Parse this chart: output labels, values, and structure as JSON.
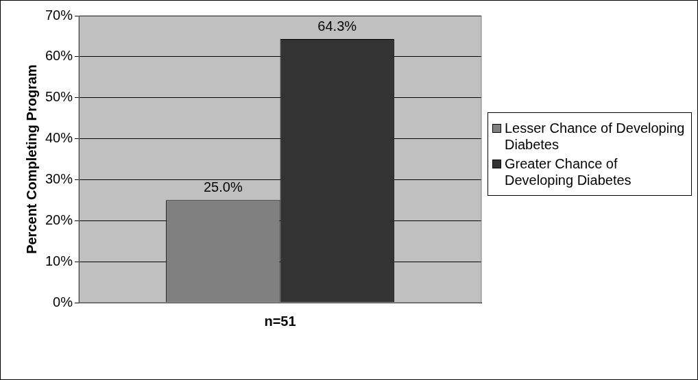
{
  "chart_data": {
    "type": "bar",
    "ylabel": "Percent Completing Program",
    "categories": [
      "n=51"
    ],
    "series": [
      {
        "name": "Lesser Chance of Developing Diabetes",
        "color": "#808080",
        "values": [
          25.0
        ],
        "value_labels": [
          "25.0%"
        ]
      },
      {
        "name": "Greater Chance of Developing Diabetes",
        "color": "#333333",
        "values": [
          64.3
        ],
        "value_labels": [
          "64.3%"
        ]
      }
    ],
    "ylim": [
      0,
      70
    ],
    "yticks": [
      {
        "value": 0,
        "label": "0%"
      },
      {
        "value": 10,
        "label": "10%"
      },
      {
        "value": 20,
        "label": "20%"
      },
      {
        "value": 30,
        "label": "30%"
      },
      {
        "value": 40,
        "label": "40%"
      },
      {
        "value": 50,
        "label": "50%"
      },
      {
        "value": 60,
        "label": "60%"
      },
      {
        "value": 70,
        "label": "70%"
      }
    ],
    "grid": "y",
    "legend": "right"
  }
}
